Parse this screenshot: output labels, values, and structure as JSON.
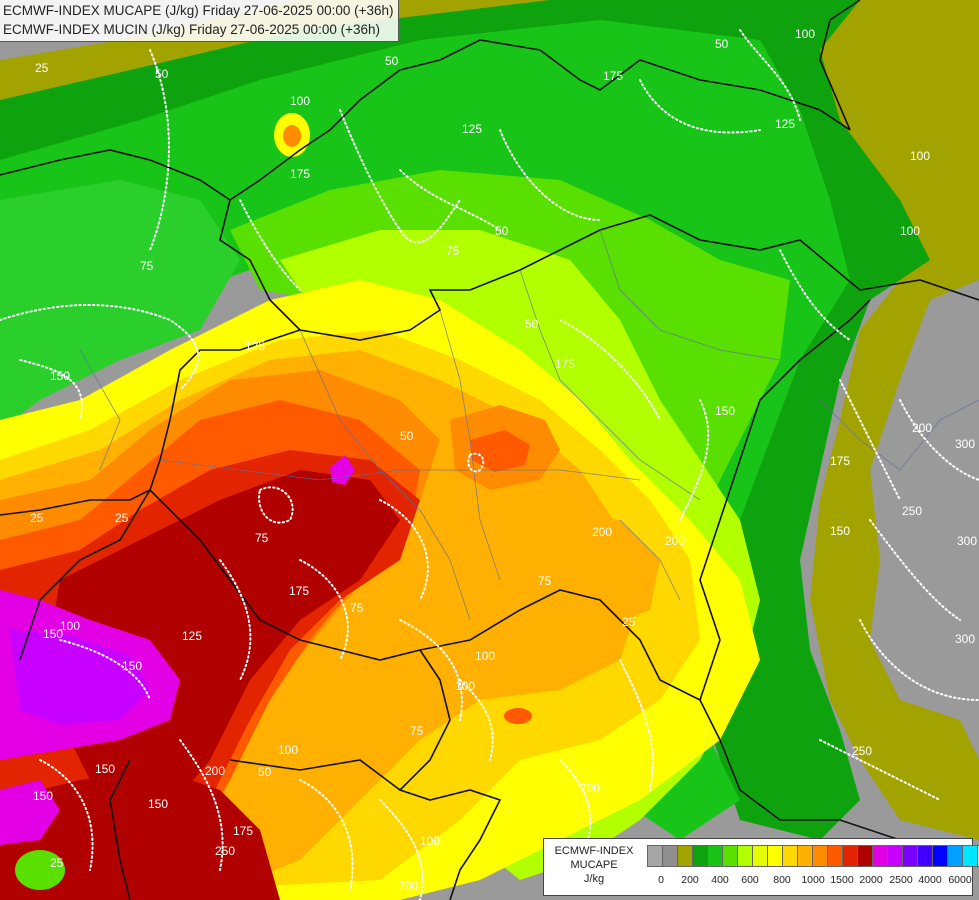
{
  "header": {
    "line1": "ECMWF-INDEX MUCAPE (J/kg) Friday 27-06-2025 00:00 (+36h)",
    "line2": "ECMWF-INDEX MUCIN (J/kg) Friday 27-06-2025 00:00 (+36h)"
  },
  "legend": {
    "line1": "ECMWF-INDEX",
    "line2": "MUCAPE",
    "unit": "J/kg",
    "colors": [
      "#a6a6a6",
      "#8f8f8f",
      "#a3a300",
      "#0fa20f",
      "#17c417",
      "#59e000",
      "#b2ff00",
      "#e6ff00",
      "#ffff00",
      "#ffd800",
      "#ffb000",
      "#ff8c00",
      "#ff5a00",
      "#e22400",
      "#b00000",
      "#e400e4",
      "#c800ff",
      "#7a00ff",
      "#4000ff",
      "#0000ff",
      "#00a0ff",
      "#00e6ff",
      "#bfffff",
      "#ffffff"
    ],
    "ticks": [
      "0",
      "200",
      "400",
      "600",
      "800",
      "1000",
      "1500",
      "2000",
      "2500",
      "4000",
      "6000"
    ]
  },
  "contour_labels": [
    "50",
    "100",
    "50",
    "125",
    "75",
    "175",
    "100",
    "125",
    "50",
    "25",
    "50",
    "150",
    "175",
    "75",
    "25",
    "50",
    "150",
    "175",
    "125",
    "100",
    "150",
    "50",
    "175",
    "200",
    "100",
    "150",
    "25",
    "75",
    "75",
    "100",
    "300",
    "200",
    "250",
    "300",
    "175",
    "250",
    "150",
    "300",
    "125",
    "100",
    "25",
    "150",
    "150",
    "175",
    "200",
    "200",
    "100",
    "150",
    "75",
    "100",
    "75",
    "25",
    "50",
    "100",
    "200",
    "250",
    "200"
  ]
}
